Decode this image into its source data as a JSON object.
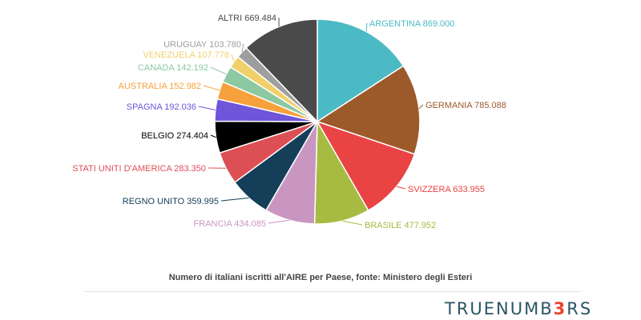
{
  "chart_data": {
    "type": "pie",
    "title": "",
    "caption": "Numero di italiani iscritti all'AIRE per Paese, fonte: Ministero degli Esteri",
    "slices": [
      {
        "label": "ARGENTINA",
        "value": 869000,
        "display": "869.000",
        "color": "#4bbac4"
      },
      {
        "label": "GERMANIA",
        "value": 785088,
        "display": "785.088",
        "color": "#9c5a2b"
      },
      {
        "label": "SVIZZERA",
        "value": 633955,
        "display": "633.955",
        "color": "#e94343"
      },
      {
        "label": "BRASILE",
        "value": 477952,
        "display": "477.952",
        "color": "#a7bb42"
      },
      {
        "label": "FRANCIA",
        "value": 434085,
        "display": "434.085",
        "color": "#c996c2"
      },
      {
        "label": "REGNO UNITO",
        "value": 359995,
        "display": "359.995",
        "color": "#153e58"
      },
      {
        "label": "STATI UNITI D'AMERICA",
        "value": 283350,
        "display": "283.350",
        "color": "#dc4f55"
      },
      {
        "label": "BELGIO",
        "value": 274404,
        "display": "274.404",
        "color": "#000000"
      },
      {
        "label": "SPAGNA",
        "value": 192036,
        "display": "192.036",
        "color": "#6f55d9"
      },
      {
        "label": "AUSTRALIA",
        "value": 152982,
        "display": "152.982",
        "color": "#f6a13b"
      },
      {
        "label": "CANADA",
        "value": 142192,
        "display": "142.192",
        "color": "#8cc8a2"
      },
      {
        "label": "VENEZUELA",
        "value": 107778,
        "display": "107.778",
        "color": "#f1d06a"
      },
      {
        "label": "URUGUAY",
        "value": 103780,
        "display": "103.780",
        "color": "#9e9e9e"
      },
      {
        "label": "ALTRI",
        "value": 669484,
        "display": "669.484",
        "color": "#4a4a4a"
      }
    ]
  },
  "brand": {
    "part1": "TRUENUMB",
    "part2": "3",
    "part3": "RS"
  }
}
